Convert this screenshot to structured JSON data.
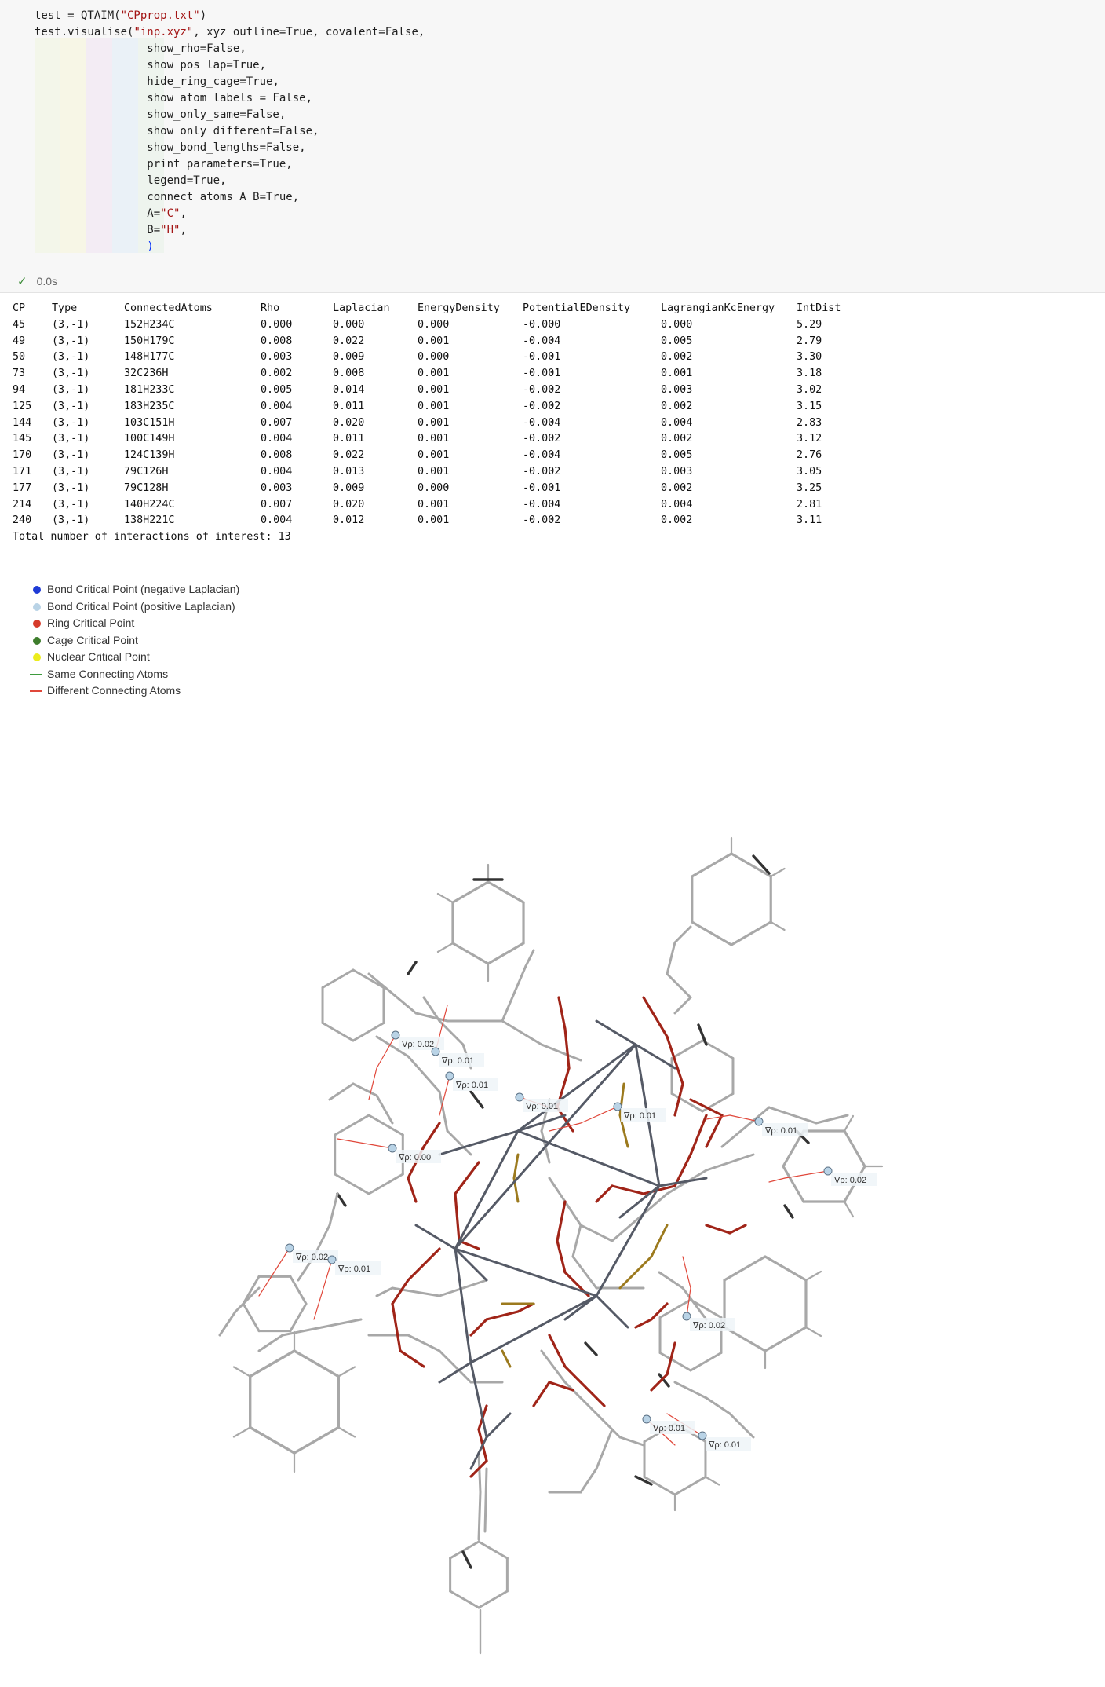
{
  "code": {
    "lines": [
      [
        "test = QTAIM(",
        "\"CPprop.txt\"",
        ")"
      ],
      [
        "test.visualise(",
        "\"inp.xyz\"",
        ", xyz_outline=True, covalent=False,"
      ],
      [
        "                 show_rho=False,",
        "",
        ""
      ],
      [
        "                 show_pos_lap=True,",
        "",
        ""
      ],
      [
        "                 hide_ring_cage=True,",
        "",
        ""
      ],
      [
        "                 show_atom_labels = False,",
        "",
        ""
      ],
      [
        "                 show_only_same=False,",
        "",
        ""
      ],
      [
        "                 show_only_different=False,",
        "",
        ""
      ],
      [
        "                 show_bond_lengths=False,",
        "",
        ""
      ],
      [
        "                 print_parameters=True,",
        "",
        ""
      ],
      [
        "                 legend=True,",
        "",
        ""
      ],
      [
        "                 connect_atoms_A_B=True,",
        "",
        ""
      ],
      [
        "                 A=",
        "\"C\"",
        ","
      ],
      [
        "                 B=",
        "\"H\"",
        ","
      ],
      [
        "                 ",
        "",
        ")"
      ]
    ],
    "run_check": "✓",
    "run_time": "0.0s"
  },
  "table": {
    "headers": [
      "CP",
      "Type",
      "ConnectedAtoms",
      "Rho",
      "Laplacian",
      "EnergyDensity",
      "PotentialEDensity",
      "LagrangianKcEnergy",
      "IntDist"
    ],
    "rows": [
      [
        "45",
        "(3,-1)",
        "152H234C",
        "0.000",
        "0.000",
        "0.000",
        "-0.000",
        "0.000",
        "5.29"
      ],
      [
        "49",
        "(3,-1)",
        "150H179C",
        "0.008",
        "0.022",
        "0.001",
        "-0.004",
        "0.005",
        "2.79"
      ],
      [
        "50",
        "(3,-1)",
        "148H177C",
        "0.003",
        "0.009",
        "0.000",
        "-0.001",
        "0.002",
        "3.30"
      ],
      [
        "73",
        "(3,-1)",
        "32C236H",
        "0.002",
        "0.008",
        "0.001",
        "-0.001",
        "0.001",
        "3.18"
      ],
      [
        "94",
        "(3,-1)",
        "181H233C",
        "0.005",
        "0.014",
        "0.001",
        "-0.002",
        "0.003",
        "3.02"
      ],
      [
        "125",
        "(3,-1)",
        "183H235C",
        "0.004",
        "0.011",
        "0.001",
        "-0.002",
        "0.002",
        "3.15"
      ],
      [
        "144",
        "(3,-1)",
        "103C151H",
        "0.007",
        "0.020",
        "0.001",
        "-0.004",
        "0.004",
        "2.83"
      ],
      [
        "145",
        "(3,-1)",
        "100C149H",
        "0.004",
        "0.011",
        "0.001",
        "-0.002",
        "0.002",
        "3.12"
      ],
      [
        "170",
        "(3,-1)",
        "124C139H",
        "0.008",
        "0.022",
        "0.001",
        "-0.004",
        "0.005",
        "2.76"
      ],
      [
        "171",
        "(3,-1)",
        "79C126H",
        "0.004",
        "0.013",
        "0.001",
        "-0.002",
        "0.003",
        "3.05"
      ],
      [
        "177",
        "(3,-1)",
        "79C128H",
        "0.003",
        "0.009",
        "0.000",
        "-0.001",
        "0.002",
        "3.25"
      ],
      [
        "214",
        "(3,-1)",
        "140H224C",
        "0.007",
        "0.020",
        "0.001",
        "-0.004",
        "0.004",
        "2.81"
      ],
      [
        "240",
        "(3,-1)",
        "138H221C",
        "0.004",
        "0.012",
        "0.001",
        "-0.002",
        "0.002",
        "3.11"
      ]
    ],
    "total": "Total number of interactions of interest: 13"
  },
  "legend": [
    {
      "label": "Bond Critical Point (negative Laplacian)",
      "kind": "dot",
      "color": "#1f3bd6"
    },
    {
      "label": "Bond Critical Point (positive Laplacian)",
      "kind": "dot",
      "color": "#b9d3e6"
    },
    {
      "label": "Ring Critical Point",
      "kind": "dot",
      "color": "#d63a2a"
    },
    {
      "label": "Cage Critical Point",
      "kind": "dot",
      "color": "#3e7d2c"
    },
    {
      "label": "Nuclear Critical Point",
      "kind": "dot",
      "color": "#ecec1c"
    },
    {
      "label": "Same Connecting Atoms",
      "kind": "line",
      "color": "#3e9b3e"
    },
    {
      "label": "Different Connecting Atoms",
      "kind": "line",
      "color": "#e0473a"
    }
  ],
  "cp_labels": [
    "∇ρ: 0.02",
    "∇ρ: 0.01",
    "∇ρ: 0.01",
    "∇ρ: 0.01",
    "∇ρ: 0.01",
    "∇ρ: 0.01",
    "∇ρ: 0.00",
    "∇ρ: 0.02",
    "∇ρ: 0.02",
    "∇ρ: 0.01",
    "∇ρ: 0.02",
    "∇ρ: 0.01",
    "∇ρ: 0.01"
  ],
  "colors": {
    "bond_grey": "#a8a8a8",
    "bond_dark": "#333333",
    "metal": "#555a66",
    "oxygen_red": "#a02418",
    "sulfur": "#9c7a1e",
    "cp_positive": "#b9d3e6",
    "interaction_line": "#e0473a"
  }
}
